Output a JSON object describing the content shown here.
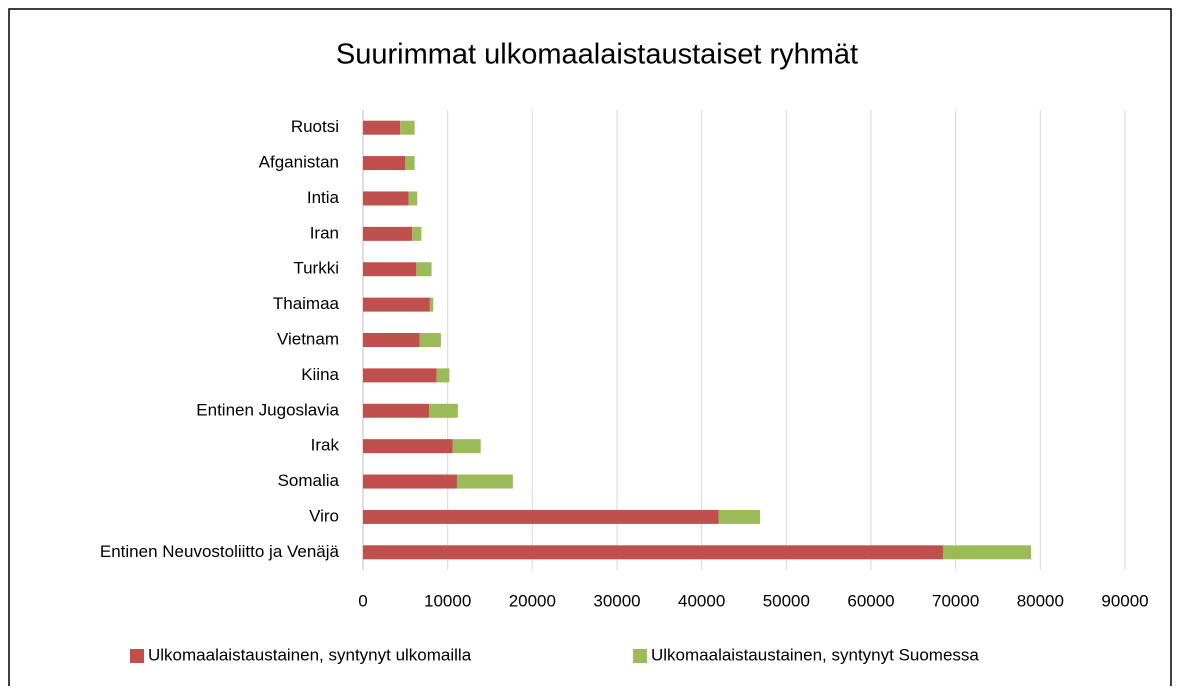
{
  "chart_data": {
    "type": "stacked-bar-horizontal",
    "title": "Suurimmat ulkomaalaistaustaiset ryhmät",
    "categories": [
      "Ruotsi",
      "Afganistan",
      "Intia",
      "Iran",
      "Turkki",
      "Thaimaa",
      "Vietnam",
      "Kiina",
      "Entinen Jugoslavia",
      "Irak",
      "Somalia",
      "Viro",
      "Entinen Neuvostoliitto ja Venäjä"
    ],
    "series": [
      {
        "name": "Ulkomaalaistaustainen, syntynyt ulkomailla",
        "color": "#c0504d",
        "values": [
          4400,
          5000,
          5400,
          5800,
          6300,
          7900,
          6700,
          8700,
          7800,
          10600,
          11100,
          42000,
          68500
        ]
      },
      {
        "name": "Ulkomaalaistaustainen, syntynyt Suomessa",
        "color": "#9bbb59",
        "values": [
          1700,
          1100,
          1000,
          1100,
          1800,
          400,
          2500,
          1500,
          3400,
          3300,
          6600,
          4900,
          10400
        ]
      }
    ],
    "xlim": [
      0,
      90000
    ],
    "xticks": [
      0,
      10000,
      20000,
      30000,
      40000,
      50000,
      60000,
      70000,
      80000,
      90000
    ],
    "grid": true,
    "legend": "bottom"
  }
}
